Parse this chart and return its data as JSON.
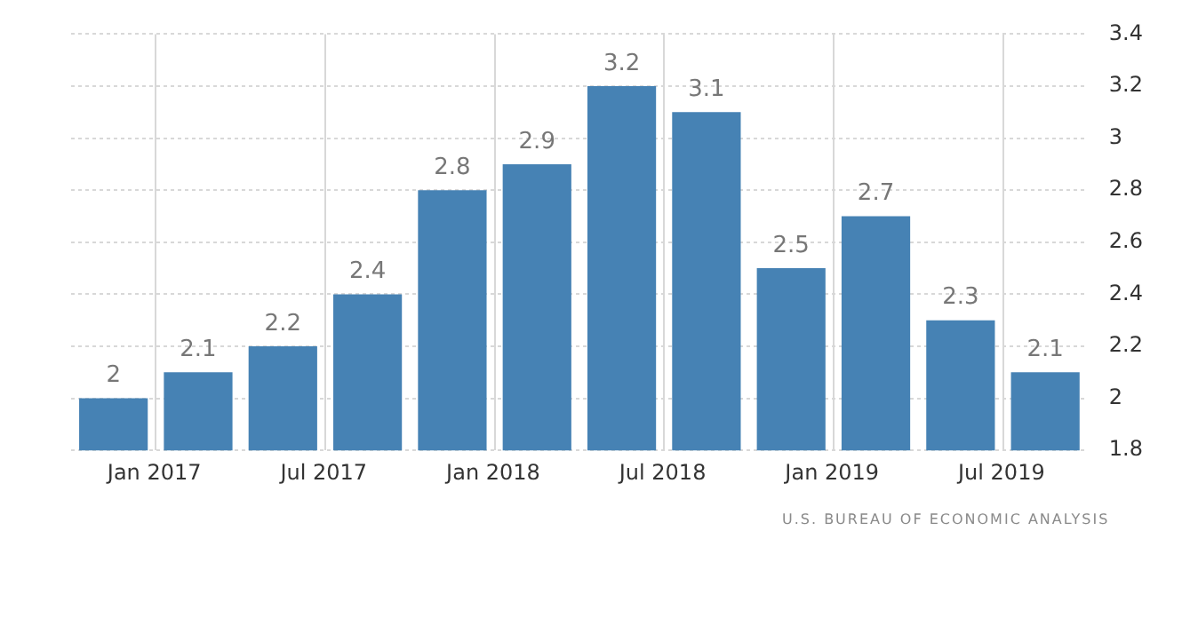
{
  "chart_data": {
    "type": "bar",
    "categories": [
      "Jan 2017",
      null,
      "Jul 2017",
      null,
      "Jan 2018",
      null,
      "Jul 2018",
      null,
      "Jan 2019",
      null,
      "Jul 2019",
      null
    ],
    "values": [
      2,
      2.1,
      2.2,
      2.4,
      2.8,
      2.9,
      3.2,
      3.1,
      2.5,
      2.7,
      2.3,
      2.1
    ],
    "color": "#4682b4",
    "ylim": [
      1.8,
      3.4
    ],
    "yticks": [
      1.8,
      2,
      2.2,
      2.4,
      2.6,
      2.8,
      3,
      3.2,
      3.4
    ],
    "grid": true,
    "data_labels": true,
    "annotations": [
      "U.S. BUREAU OF ECONOMIC ANALYSIS"
    ]
  }
}
